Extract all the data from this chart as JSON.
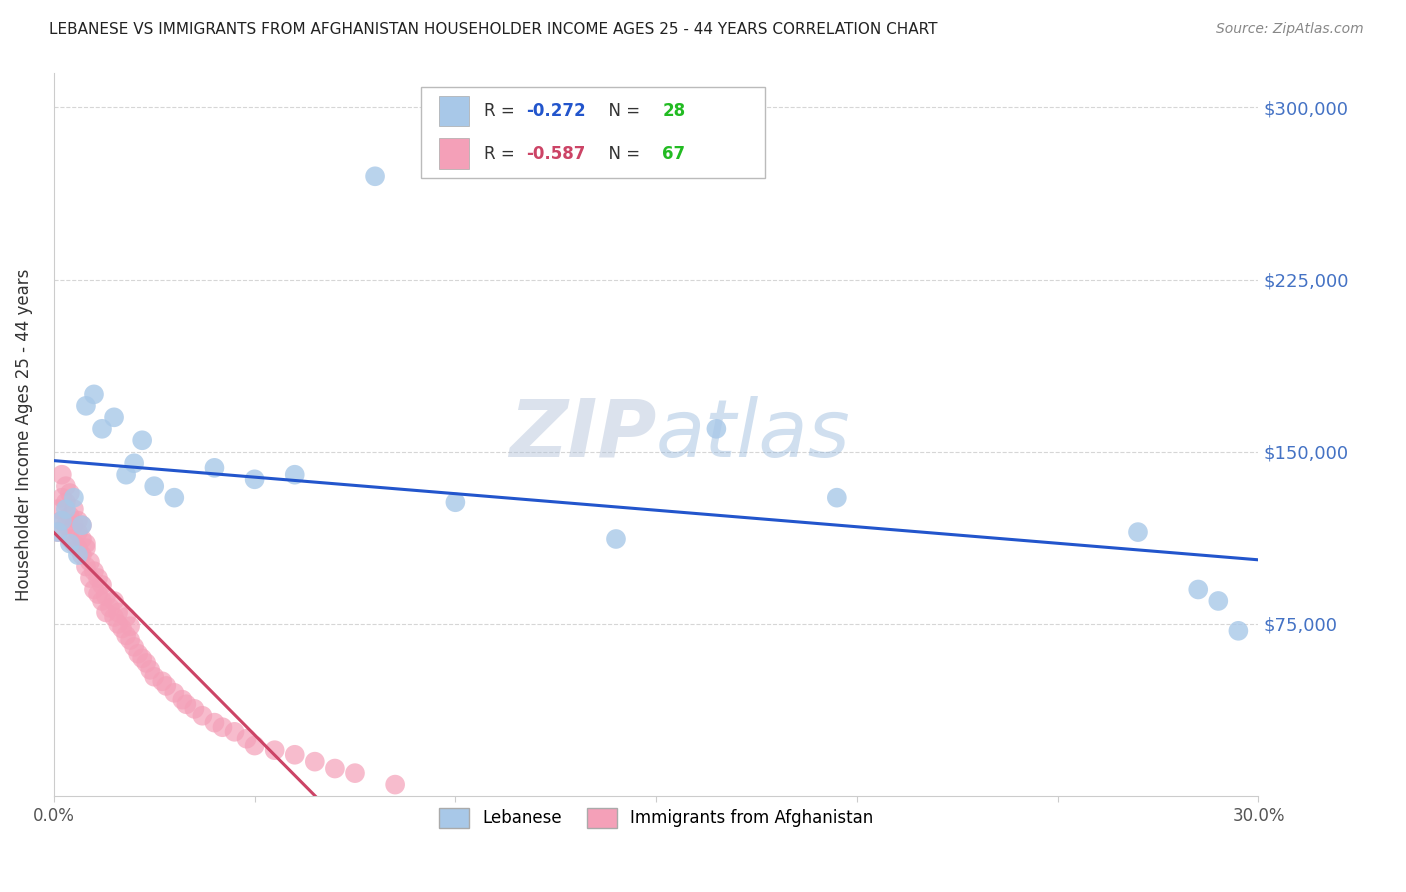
{
  "title": "LEBANESE VS IMMIGRANTS FROM AFGHANISTAN HOUSEHOLDER INCOME AGES 25 - 44 YEARS CORRELATION CHART",
  "source": "Source: ZipAtlas.com",
  "ylabel": "Householder Income Ages 25 - 44 years",
  "xlim": [
    0.0,
    0.3
  ],
  "ylim": [
    0,
    315000
  ],
  "ytick_labels": [
    "$75,000",
    "$150,000",
    "$225,000",
    "$300,000"
  ],
  "ytick_values": [
    75000,
    150000,
    225000,
    300000
  ],
  "lebanese_R": "-0.272",
  "lebanese_N": "28",
  "afghanistan_R": "-0.587",
  "afghanistan_N": "67",
  "lebanese_color": "#a8c8e8",
  "afghanistan_color": "#f4a0b8",
  "trendline_blue": "#2255cc",
  "trendline_pink": "#cc4466",
  "lebanese_x": [
    0.001,
    0.002,
    0.003,
    0.004,
    0.005,
    0.006,
    0.007,
    0.008,
    0.01,
    0.012,
    0.015,
    0.018,
    0.02,
    0.022,
    0.025,
    0.03,
    0.04,
    0.05,
    0.06,
    0.08,
    0.1,
    0.14,
    0.165,
    0.195,
    0.27,
    0.285,
    0.29,
    0.295
  ],
  "lebanese_y": [
    115000,
    120000,
    125000,
    110000,
    130000,
    105000,
    118000,
    170000,
    175000,
    160000,
    165000,
    140000,
    145000,
    155000,
    135000,
    130000,
    143000,
    138000,
    140000,
    270000,
    128000,
    112000,
    160000,
    130000,
    115000,
    90000,
    85000,
    72000
  ],
  "afghanistan_x": [
    0.001,
    0.001,
    0.002,
    0.002,
    0.002,
    0.003,
    0.003,
    0.003,
    0.004,
    0.004,
    0.004,
    0.005,
    0.005,
    0.005,
    0.006,
    0.006,
    0.006,
    0.007,
    0.007,
    0.007,
    0.008,
    0.008,
    0.008,
    0.009,
    0.009,
    0.01,
    0.01,
    0.011,
    0.011,
    0.012,
    0.012,
    0.013,
    0.013,
    0.014,
    0.015,
    0.015,
    0.016,
    0.016,
    0.017,
    0.018,
    0.018,
    0.019,
    0.019,
    0.02,
    0.021,
    0.022,
    0.023,
    0.024,
    0.025,
    0.027,
    0.028,
    0.03,
    0.032,
    0.033,
    0.035,
    0.037,
    0.04,
    0.042,
    0.045,
    0.048,
    0.05,
    0.055,
    0.06,
    0.065,
    0.07,
    0.075,
    0.085
  ],
  "afghanistan_y": [
    115000,
    125000,
    130000,
    120000,
    140000,
    128000,
    118000,
    135000,
    122000,
    112000,
    132000,
    118000,
    125000,
    110000,
    120000,
    108000,
    115000,
    112000,
    105000,
    118000,
    110000,
    100000,
    108000,
    102000,
    95000,
    98000,
    90000,
    95000,
    88000,
    85000,
    92000,
    80000,
    87000,
    82000,
    78000,
    85000,
    75000,
    80000,
    73000,
    70000,
    78000,
    68000,
    74000,
    65000,
    62000,
    60000,
    58000,
    55000,
    52000,
    50000,
    48000,
    45000,
    42000,
    40000,
    38000,
    35000,
    32000,
    30000,
    28000,
    25000,
    22000,
    20000,
    18000,
    15000,
    12000,
    10000,
    5000
  ],
  "background_color": "#ffffff",
  "grid_color": "#cccccc",
  "title_color": "#222222",
  "right_label_color": "#4472c4",
  "source_color": "#888888",
  "watermark_color": "#c8d8f0",
  "watermark_alpha": 0.5
}
